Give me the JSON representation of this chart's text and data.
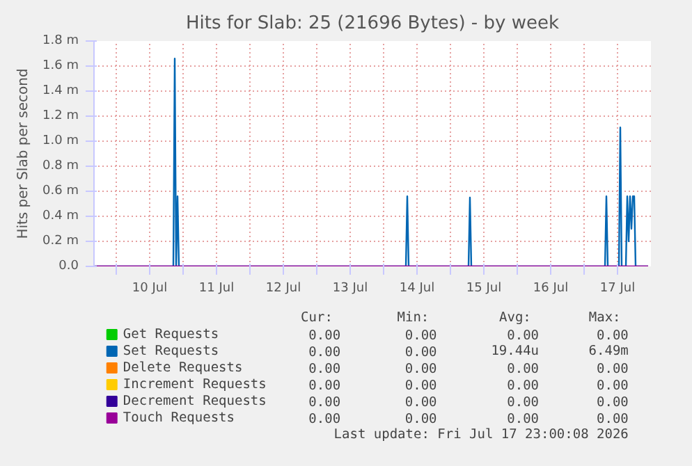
{
  "chart_data": {
    "type": "line",
    "title": "Hits for Slab: 25 (21696 Bytes) - by week",
    "ylabel": "Hits per Slab per second",
    "xlim": [
      "2026-07-09T16:00",
      "2026-07-18T00:00"
    ],
    "xticks": [
      {
        "value": "2026-07-10T00:00",
        "label": null
      },
      {
        "value": "2026-07-10T12:00",
        "label": "10 Jul"
      },
      {
        "value": "2026-07-11T00:00",
        "label": null
      },
      {
        "value": "2026-07-11T12:00",
        "label": "11 Jul"
      },
      {
        "value": "2026-07-12T00:00",
        "label": null
      },
      {
        "value": "2026-07-12T12:00",
        "label": "12 Jul"
      },
      {
        "value": "2026-07-13T00:00",
        "label": null
      },
      {
        "value": "2026-07-13T12:00",
        "label": "13 Jul"
      },
      {
        "value": "2026-07-14T00:00",
        "label": null
      },
      {
        "value": "2026-07-14T12:00",
        "label": "14 Jul"
      },
      {
        "value": "2026-07-15T00:00",
        "label": null
      },
      {
        "value": "2026-07-15T12:00",
        "label": "15 Jul"
      },
      {
        "value": "2026-07-16T00:00",
        "label": null
      },
      {
        "value": "2026-07-16T12:00",
        "label": "16 Jul"
      },
      {
        "value": "2026-07-17T00:00",
        "label": null
      },
      {
        "value": "2026-07-17T12:00",
        "label": "17 Jul"
      }
    ],
    "ylim": [
      0,
      1.8
    ],
    "yticks": [
      {
        "value": 0,
        "label": "0.0"
      },
      {
        "value": 0.2,
        "label": "0.2 m"
      },
      {
        "value": 0.4,
        "label": "0.4 m"
      },
      {
        "value": 0.6,
        "label": "0.6 m"
      },
      {
        "value": 0.8,
        "label": "0.8 m"
      },
      {
        "value": 1.0,
        "label": "1.0 m"
      },
      {
        "value": 1.2,
        "label": "1.2 m"
      },
      {
        "value": 1.4,
        "label": "1.4 m"
      },
      {
        "value": 1.6,
        "label": "1.6 m"
      },
      {
        "value": 1.8,
        "label": "1.8 m"
      }
    ],
    "grid": true,
    "legend": "bottom",
    "marker": "none",
    "line_style": "solid",
    "series": [
      {
        "name": "Get Requests",
        "color": "#00cc00"
      },
      {
        "name": "Set Requests",
        "color": "#0066b3",
        "x": [
          "2026-07-09T16:00",
          "2026-07-10T20:30",
          "2026-07-10T21:00",
          "2026-07-10T21:30",
          "2026-07-10T22:00",
          "2026-07-10T22:30",
          "2026-07-14T08:00",
          "2026-07-14T08:30",
          "2026-07-14T09:00",
          "2026-07-15T06:30",
          "2026-07-15T07:00",
          "2026-07-15T07:30",
          "2026-07-17T07:30",
          "2026-07-17T08:00",
          "2026-07-17T08:30",
          "2026-07-17T12:30",
          "2026-07-17T13:00",
          "2026-07-17T13:30",
          "2026-07-17T15:00",
          "2026-07-17T15:30",
          "2026-07-17T16:00",
          "2026-07-17T16:30",
          "2026-07-17T17:00",
          "2026-07-17T17:30",
          "2026-07-17T18:00",
          "2026-07-17T18:30",
          "2026-07-17T23:00"
        ],
        "values": [
          0,
          0,
          1.66,
          0,
          0.56,
          0,
          0,
          0.56,
          0,
          0,
          0.55,
          0,
          0,
          0.56,
          0,
          0,
          1.11,
          0,
          0,
          0.56,
          0.2,
          0.56,
          0.3,
          0.56,
          0.56,
          0,
          0
        ]
      },
      {
        "name": "Delete Requests",
        "color": "#ff8000"
      },
      {
        "name": "Increment Requests",
        "color": "#ffcc00"
      },
      {
        "name": "Decrement Requests",
        "color": "#330099"
      },
      {
        "name": "Touch Requests",
        "color": "#990099",
        "x": [
          "2026-07-09T16:00",
          "2026-07-17T23:00"
        ],
        "values": [
          0,
          0
        ]
      }
    ],
    "annotations": [
      "Cur:",
      "Min:",
      "Avg:",
      "Max:",
      "0.00",
      "0.00",
      "0.00",
      "0.00",
      "0.00",
      "0.00",
      "19.44u",
      "6.49m",
      "0.00",
      "0.00",
      "0.00",
      "0.00",
      "0.00",
      "0.00",
      "0.00",
      "0.00",
      "0.00",
      "0.00",
      "0.00",
      "0.00",
      "0.00",
      "0.00",
      "0.00",
      "0.00",
      "Last update: Fri Jul 17 23:00:08 2026"
    ]
  }
}
